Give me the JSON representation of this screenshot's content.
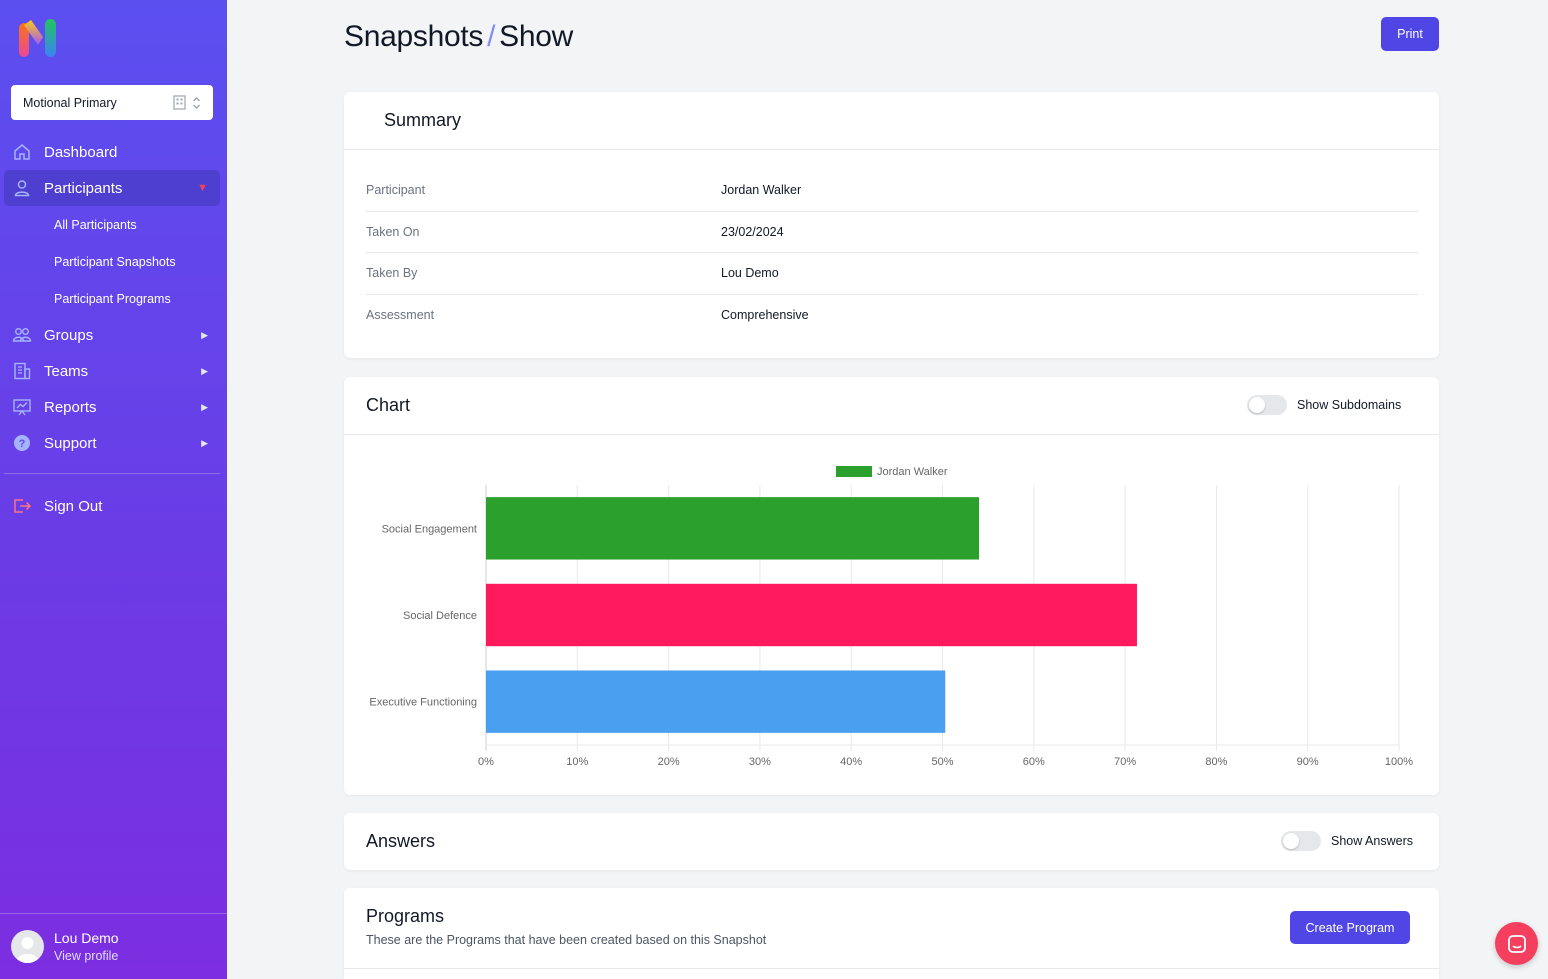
{
  "sidebar": {
    "org_select": {
      "value": "Motional Primary"
    },
    "nav": [
      {
        "label": "Dashboard",
        "icon": "home-icon"
      },
      {
        "label": "Participants",
        "icon": "user-icon",
        "expanded": true,
        "children": [
          "All Participants",
          "Participant Snapshots",
          "Participant Programs"
        ]
      },
      {
        "label": "Groups",
        "icon": "users-icon"
      },
      {
        "label": "Teams",
        "icon": "building-icon"
      },
      {
        "label": "Reports",
        "icon": "presentation-chart-icon"
      },
      {
        "label": "Support",
        "icon": "help-icon"
      }
    ],
    "sign_out": "Sign Out",
    "profile": {
      "name": "Lou Demo",
      "link": "View profile"
    }
  },
  "header": {
    "title_part1": "Snapshots",
    "separator": "/",
    "title_part2": "Show",
    "print_label": "Print"
  },
  "summary": {
    "title": "Summary",
    "rows": [
      {
        "label": "Participant",
        "value": "Jordan Walker"
      },
      {
        "label": "Taken On",
        "value": "23/02/2024"
      },
      {
        "label": "Taken By",
        "value": "Lou Demo"
      },
      {
        "label": "Assessment",
        "value": "Comprehensive"
      }
    ]
  },
  "chart_section": {
    "title": "Chart",
    "toggle_label": "Show Subdomains",
    "toggle_on": false
  },
  "chart_data": {
    "type": "bar",
    "orientation": "horizontal",
    "categories": [
      "Social Engagement",
      "Social Defence",
      "Executive Functioning"
    ],
    "series": [
      {
        "name": "Jordan Walker",
        "values": [
          54,
          71.3,
          50.3
        ]
      }
    ],
    "bar_colors": [
      "#2ca02c",
      "#ff1a5e",
      "#4aa0f0"
    ],
    "xlim": [
      0,
      100
    ],
    "x_ticks": [
      "0%",
      "10%",
      "20%",
      "30%",
      "40%",
      "50%",
      "60%",
      "70%",
      "80%",
      "90%",
      "100%"
    ],
    "legend_position": "top",
    "grid": true
  },
  "answers": {
    "title": "Answers",
    "toggle_label": "Show Answers",
    "toggle_on": false
  },
  "programs": {
    "title": "Programs",
    "subtitle": "These are the Programs that have been created based on this Snapshot",
    "create_label": "Create Program"
  },
  "colors": {
    "accent": "#4f46e5",
    "sidebar_top": "#5b4ff0",
    "sidebar_bottom": "#7c2ee0",
    "chat_button": "#f43f5e"
  }
}
